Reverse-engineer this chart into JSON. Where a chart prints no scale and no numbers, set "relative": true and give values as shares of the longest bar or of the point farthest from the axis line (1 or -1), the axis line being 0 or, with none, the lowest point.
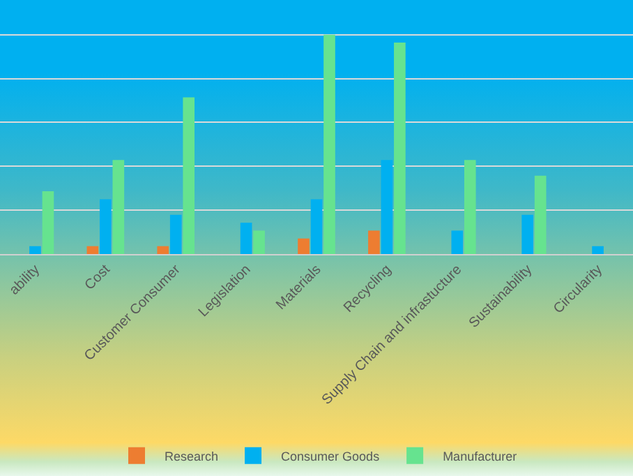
{
  "chart_data": {
    "type": "bar",
    "relative": true,
    "grid": "y",
    "legend": "bottom",
    "categories": [
      "ability",
      "Cost",
      "Customer Consumer",
      "Legislation",
      "Materials",
      "Recycling",
      "Supply Chain and infrastucture",
      "Sustainability",
      "Circularity"
    ],
    "series": [
      {
        "name": "Research",
        "color": "#ed7d31",
        "values": [
          0,
          0.036,
          0.036,
          0,
          0.071,
          0.107,
          0,
          0,
          null
        ]
      },
      {
        "name": "Consumer Goods",
        "color": "#00b0f0",
        "values": [
          0.036,
          0.25,
          0.179,
          0.143,
          0.25,
          0.429,
          0.107,
          0.179,
          0.036
        ]
      },
      {
        "name": "Manufacturer",
        "color": "#66e38f",
        "values": [
          0.286,
          0.429,
          0.714,
          0.107,
          1,
          0.964,
          0.429,
          0.357,
          null
        ]
      }
    ]
  }
}
